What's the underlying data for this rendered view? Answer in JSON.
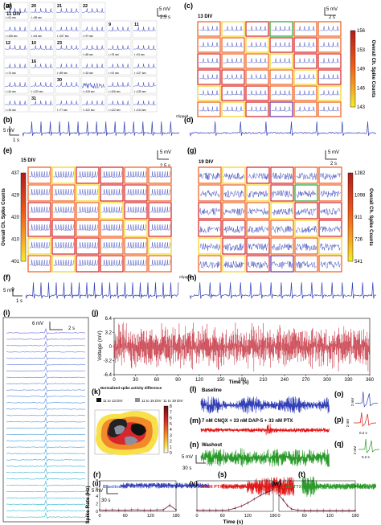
{
  "colors": {
    "trace_blue": "#3340b8",
    "trace_red": "#c0202e",
    "trace_green": "#2a9a2a",
    "ttx_red": "#e01818",
    "grid_orange": "#f05a18",
    "grid_red": "#d81e1e",
    "grid_yellow": "#f2d31a",
    "grid_green": "#2aa02a",
    "grid_purple": "#6a2aa0",
    "label_blue": "#3a6ad8",
    "label_red": "#e11818",
    "label_green": "#2a9a2a"
  },
  "panels": {
    "a": {
      "label": "(a)",
      "div": "11 DIV",
      "scale_v": "5 mV",
      "scale_t": "2.5 s",
      "cells": [
        {
          "num": "19",
          "time": ""
        },
        {
          "num": "20",
          "time": ""
        },
        {
          "num": "21",
          "time": ""
        },
        {
          "num": "22",
          "time": ""
        },
        {
          "num": "",
          "time": "t =156 sec"
        },
        {
          "num": "",
          "time": "t =64 sec"
        },
        {
          "num": "",
          "time": "t =207 sec"
        },
        {
          "num": "",
          "time": "t =97 sec"
        },
        {
          "num": "9",
          "time": ""
        },
        {
          "num": "11",
          "time": ""
        },
        {
          "num": "12",
          "time": ""
        },
        {
          "num": "10",
          "time": ""
        },
        {
          "num": "23",
          "time": ""
        },
        {
          "num": "",
          "time": "t =65 sec"
        },
        {
          "num": "",
          "time": "t =78 sec"
        },
        {
          "num": "",
          "time": "t =91 sec"
        },
        {
          "num": "",
          "time": "t =74 sec"
        },
        {
          "num": "16",
          "time": ""
        },
        {
          "num": "",
          "time": "t =89 sec"
        },
        {
          "num": "",
          "time": "t =33 sec"
        },
        {
          "num": "",
          "time": "t =91 sec"
        },
        {
          "num": "",
          "time": "t =127 sec"
        },
        {
          "num": "",
          "time": "t =44 sec"
        },
        {
          "num": "",
          "time": "t =120 sec"
        },
        {
          "num": "30",
          "time": ""
        },
        {
          "num": "",
          "time": "t =126 sec"
        },
        {
          "num": "",
          "time": "t =106 sec"
        },
        {
          "num": "",
          "time": "t =130 sec"
        },
        {
          "num": "",
          "time": "t =33 sec"
        },
        {
          "num": "31",
          "time": ""
        },
        {
          "num": "",
          "time": "t =77 sec"
        },
        {
          "num": "",
          "time": "t =122 sec"
        },
        {
          "num": "",
          "time": "t =122 sec"
        },
        {
          "num": "",
          "time": "t =214 sec"
        },
        {
          "num": "",
          "time": "t =61 sec"
        },
        {
          "num": "",
          "time": "t =85 sec"
        }
      ]
    },
    "b": {
      "label": "(b)",
      "scale_v": "5 mV",
      "scale_t": "1 s",
      "note": "Clipped"
    },
    "c": {
      "label": "(c)",
      "div": "13 DIV",
      "scale_v": "5 mV",
      "scale_t": "2 s",
      "colorbar": {
        "title": "Overall Ch. Spike Counts",
        "ticks": [
          "156",
          "153",
          "149",
          "146",
          "143"
        ]
      }
    },
    "d": {
      "label": "(d)"
    },
    "e": {
      "label": "(e)",
      "div": "15 DIV",
      "scale_v": "5 mV",
      "scale_t": "2.5 s",
      "colorbar": {
        "title": "Overall Ch. Spike Counts",
        "ticks": [
          "437",
          "429",
          "420",
          "410",
          "401"
        ]
      }
    },
    "f": {
      "label": "(f)",
      "scale_v": "5 mV",
      "scale_t": "1 s",
      "note": "Clipped"
    },
    "g": {
      "label": "(g)",
      "div": "19 DIV",
      "scale_v": "5 mV",
      "scale_t": "2 s",
      "colorbar": {
        "title": "Overall Ch. Spike Counts",
        "ticks": [
          "1282",
          "1098",
          "911",
          "726",
          "541"
        ]
      }
    },
    "h": {
      "label": "(h)"
    },
    "i": {
      "label": "(i)",
      "scale_v": "6 mV",
      "scale_t": "2 s"
    },
    "j": {
      "label": "(j)",
      "ylabel": "Voltage (mV)",
      "xlabel": "Time (s)",
      "yticks": [
        "6.4",
        "3.2",
        "0",
        "-3.2",
        "-6.4"
      ],
      "xticks": [
        "0",
        "30",
        "60",
        "90",
        "120",
        "150",
        "180",
        "210",
        "240",
        "270",
        "300",
        "330",
        "360"
      ]
    },
    "k": {
      "label": "(k)",
      "title": "Normalized spike activity difference",
      "legend": [
        "11 to 13 DIV",
        "11 to 15 DIV"
      ],
      "legend2": "11 to 19 DIV",
      "ticks": [
        "8",
        "7",
        "6",
        "5",
        "4",
        "3",
        "2",
        "1",
        "0"
      ]
    },
    "l": {
      "label": "(l)",
      "name": "Baseline"
    },
    "m": {
      "label": "(m)",
      "name": "7 nM CNQX + 33 nM DAP-5 + 33 nM PTX"
    },
    "n": {
      "label": "(n)",
      "name": "Washout",
      "scale_v": "5 mV",
      "scale_t": "30 s"
    },
    "o": {
      "label": "(o)",
      "scale_v": "2 mV"
    },
    "p": {
      "label": "(p)",
      "scale_v": "2 mV",
      "scale_t": "0.2 s"
    },
    "q": {
      "label": "(q)",
      "scale_v": "2 mV",
      "scale_t": "0.2 s"
    },
    "r": {
      "label": "(r)",
      "scale_v": "5 mV",
      "scale_t": "30 s"
    },
    "s": {
      "label": "(s)"
    },
    "t": {
      "label": "(t)"
    },
    "u": {
      "label": "(u)",
      "name": "Baseline",
      "ylabel": "Spike Rate (Hz)"
    },
    "v": {
      "label": "(v)",
      "name": "33 nM PTX"
    },
    "w": {
      "label": "(w)",
      "name": "1 nM TTX"
    },
    "shared_xlabel": "Time (s)"
  },
  "chart_data": [
    {
      "type": "line",
      "panel": "j",
      "ylim": [
        -6.4,
        6.4
      ],
      "xlim": [
        0,
        360
      ],
      "grid": false
    },
    {
      "type": "line",
      "panel": "u",
      "x_ticks": [
        "0",
        "60",
        "120",
        "180"
      ],
      "y_ticks": [
        "0",
        "2",
        "4",
        "6",
        "8"
      ],
      "ylim": [
        0,
        8
      ],
      "xlim": [
        0,
        180
      ],
      "x": [
        0,
        15,
        30,
        45,
        60,
        75,
        90,
        105,
        120,
        135,
        150,
        165,
        180
      ],
      "y": [
        0.4,
        0.3,
        0.4,
        0.3,
        0.3,
        0.4,
        0.4,
        0.3,
        0.3,
        0.4,
        0.4,
        1.6,
        0.4
      ]
    },
    {
      "type": "line",
      "panel": "v",
      "x_ticks": [
        "0",
        "60",
        "120",
        "180"
      ],
      "ylim": [
        0,
        8
      ],
      "xlim": [
        0,
        180
      ],
      "x": [
        0,
        15,
        30,
        45,
        60,
        75,
        90,
        105,
        120,
        135,
        150,
        165,
        180
      ],
      "y": [
        0.3,
        0.3,
        0.3,
        0.3,
        0.3,
        0.4,
        0.8,
        1.4,
        2.2,
        3.2,
        4.2,
        5.0,
        5.6
      ]
    },
    {
      "type": "line",
      "panel": "w",
      "x_ticks": [
        "0",
        "60",
        "120",
        "180"
      ],
      "ylim": [
        0,
        8
      ],
      "xlim": [
        0,
        180
      ],
      "x": [
        0,
        10,
        20,
        30,
        45,
        60,
        75,
        90,
        105,
        120,
        135,
        150,
        165,
        180
      ],
      "y": [
        4.2,
        3.0,
        1.5,
        0.6,
        0.3,
        0.2,
        0.2,
        0.2,
        0.2,
        0.2,
        0.2,
        0.2,
        0.2,
        0.2
      ]
    }
  ]
}
